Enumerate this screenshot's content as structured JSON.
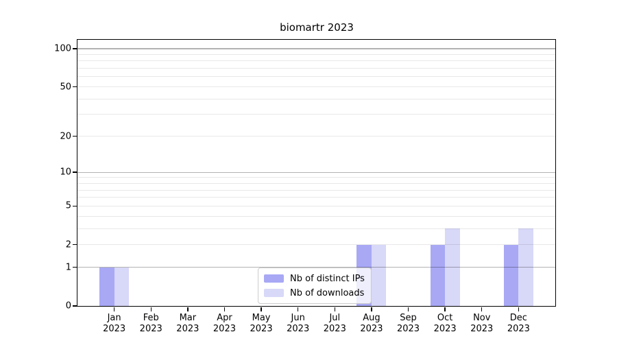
{
  "chart_data": {
    "type": "bar",
    "title": "biomartr 2023",
    "year_label": "2023",
    "categories": [
      "Jan",
      "Feb",
      "Mar",
      "Apr",
      "May",
      "Jun",
      "Jul",
      "Aug",
      "Sep",
      "Oct",
      "Nov",
      "Dec"
    ],
    "series": [
      {
        "name": "Nb of distinct IPs",
        "color": "#a8a8f5",
        "values": [
          1,
          0,
          0,
          0,
          0,
          0,
          0,
          2,
          0,
          2,
          0,
          2
        ]
      },
      {
        "name": "Nb of downloads",
        "color": "#d8d8f8",
        "values": [
          1,
          0,
          0,
          0,
          0,
          0,
          0,
          2,
          0,
          3,
          0,
          3
        ]
      }
    ],
    "yticks": [
      0,
      1,
      2,
      5,
      10,
      20,
      50,
      100
    ],
    "ylim": [
      0,
      100
    ],
    "scale": "log1p",
    "grid": "on",
    "major_grid_values": [
      1,
      10,
      100
    ],
    "legend_position": "lower center",
    "xlabel": "",
    "ylabel": ""
  },
  "colors": {
    "bar_distinct_ips": "#a8a8f5",
    "bar_downloads": "#d8d8f8",
    "major_gridline": "#b0b0b0",
    "minor_gridline": "#e8e8e8",
    "spine": "#000000",
    "legend_border": "#cccccc",
    "background": "#ffffff"
  }
}
